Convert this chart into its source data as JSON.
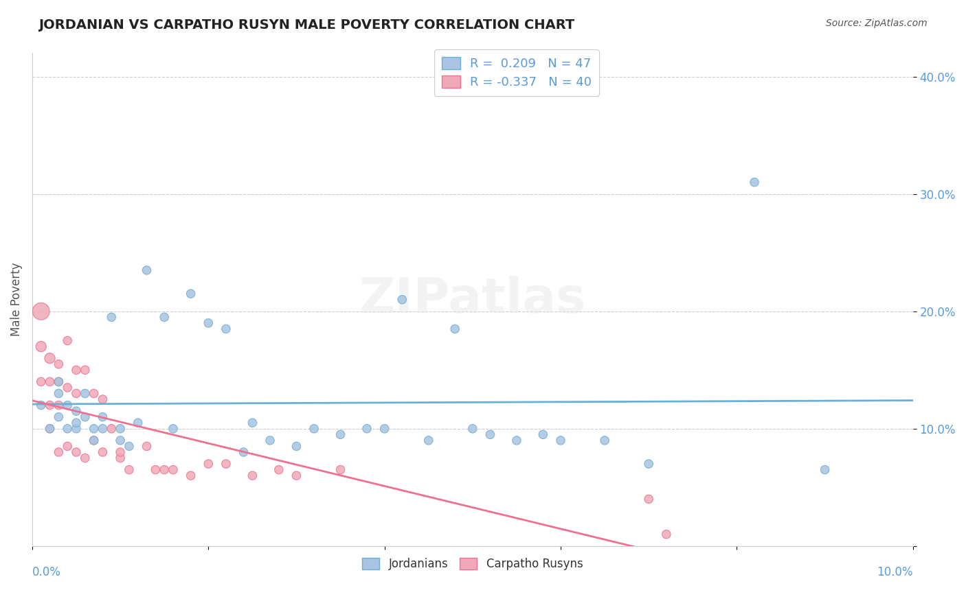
{
  "title": "JORDANIAN VS CARPATHO RUSYN MALE POVERTY CORRELATION CHART",
  "source": "Source: ZipAtlas.com",
  "ylabel": "Male Poverty",
  "xlim": [
    0.0,
    0.1
  ],
  "ylim": [
    0.0,
    0.42
  ],
  "yticks": [
    0.0,
    0.1,
    0.2,
    0.3,
    0.4
  ],
  "ytick_labels": [
    "",
    "10.0%",
    "20.0%",
    "30.0%",
    "40.0%"
  ],
  "legend_r1": "R =  0.209",
  "legend_n1": "N = 47",
  "legend_r2": "R = -0.337",
  "legend_n2": "N = 40",
  "color_jordanian": "#a8c4e0",
  "color_carpatho": "#f0a8b8",
  "color_jordanian_line": "#6aafd6",
  "color_carpatho_line": "#f07090",
  "color_title": "#222222",
  "color_axis": "#5b9bd5",
  "color_legend_text": "#5b9bd5",
  "background_color": "#ffffff",
  "watermark": "ZIPatlas",
  "jordanian_x": [
    0.001,
    0.002,
    0.003,
    0.003,
    0.003,
    0.004,
    0.004,
    0.005,
    0.005,
    0.005,
    0.006,
    0.006,
    0.007,
    0.007,
    0.008,
    0.008,
    0.009,
    0.01,
    0.01,
    0.011,
    0.012,
    0.013,
    0.015,
    0.016,
    0.018,
    0.02,
    0.022,
    0.024,
    0.025,
    0.027,
    0.03,
    0.032,
    0.035,
    0.038,
    0.04,
    0.042,
    0.045,
    0.048,
    0.05,
    0.052,
    0.055,
    0.058,
    0.06,
    0.065,
    0.07,
    0.082,
    0.09
  ],
  "jordanian_y": [
    0.12,
    0.1,
    0.13,
    0.11,
    0.14,
    0.1,
    0.12,
    0.115,
    0.1,
    0.105,
    0.13,
    0.11,
    0.1,
    0.09,
    0.1,
    0.11,
    0.195,
    0.1,
    0.09,
    0.085,
    0.105,
    0.235,
    0.195,
    0.1,
    0.215,
    0.19,
    0.185,
    0.08,
    0.105,
    0.09,
    0.085,
    0.1,
    0.095,
    0.1,
    0.1,
    0.21,
    0.09,
    0.185,
    0.1,
    0.095,
    0.09,
    0.095,
    0.09,
    0.09,
    0.07,
    0.31,
    0.065
  ],
  "jordanian_size": [
    20,
    20,
    20,
    20,
    20,
    20,
    20,
    20,
    20,
    20,
    20,
    20,
    20,
    20,
    20,
    20,
    20,
    20,
    20,
    20,
    20,
    20,
    20,
    20,
    20,
    20,
    20,
    20,
    20,
    20,
    20,
    20,
    20,
    20,
    20,
    20,
    20,
    20,
    20,
    20,
    20,
    20,
    20,
    20,
    20,
    20,
    20
  ],
  "carpatho_x": [
    0.001,
    0.001,
    0.001,
    0.002,
    0.002,
    0.002,
    0.002,
    0.003,
    0.003,
    0.003,
    0.003,
    0.004,
    0.004,
    0.004,
    0.005,
    0.005,
    0.005,
    0.006,
    0.006,
    0.007,
    0.007,
    0.008,
    0.008,
    0.009,
    0.01,
    0.01,
    0.011,
    0.013,
    0.014,
    0.015,
    0.016,
    0.018,
    0.02,
    0.022,
    0.025,
    0.028,
    0.03,
    0.035,
    0.07,
    0.072
  ],
  "carpatho_y": [
    0.2,
    0.17,
    0.14,
    0.16,
    0.14,
    0.12,
    0.1,
    0.155,
    0.14,
    0.12,
    0.08,
    0.175,
    0.135,
    0.085,
    0.15,
    0.13,
    0.08,
    0.15,
    0.075,
    0.13,
    0.09,
    0.125,
    0.08,
    0.1,
    0.075,
    0.08,
    0.065,
    0.085,
    0.065,
    0.065,
    0.065,
    0.06,
    0.07,
    0.07,
    0.06,
    0.065,
    0.06,
    0.065,
    0.04,
    0.01
  ],
  "carpatho_size": [
    80,
    30,
    20,
    30,
    20,
    20,
    20,
    20,
    20,
    20,
    20,
    20,
    20,
    20,
    20,
    20,
    20,
    20,
    20,
    20,
    20,
    20,
    20,
    20,
    20,
    20,
    20,
    20,
    20,
    20,
    20,
    20,
    20,
    20,
    20,
    20,
    20,
    20,
    20,
    20
  ]
}
